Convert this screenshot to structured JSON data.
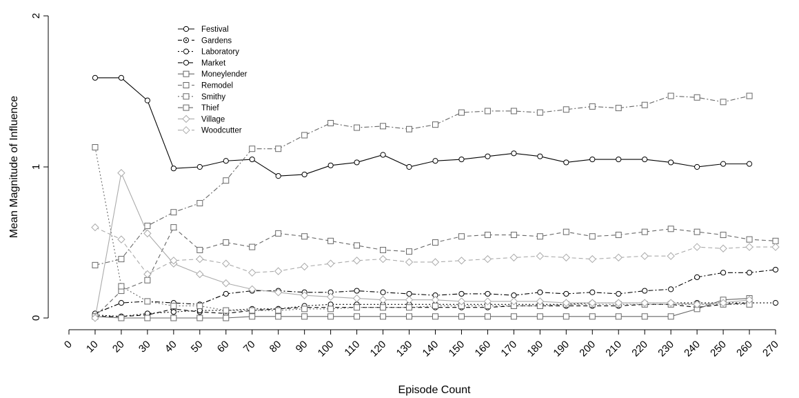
{
  "chart_data": {
    "type": "line",
    "title": "",
    "xlabel": "Episode Count",
    "ylabel": "Mean Magnitude of Influence",
    "xlim": [
      0,
      270
    ],
    "ylim": [
      0,
      2
    ],
    "x_ticks": [
      0,
      10,
      20,
      30,
      40,
      50,
      60,
      70,
      80,
      90,
      100,
      110,
      120,
      130,
      140,
      150,
      160,
      170,
      180,
      190,
      200,
      210,
      220,
      230,
      240,
      250,
      260,
      270
    ],
    "x_tick_labels": [
      "0",
      "10",
      "20",
      "30",
      "40",
      "50",
      "60",
      "70",
      "80",
      "90",
      "100",
      "110",
      "120",
      "130",
      "140",
      "150",
      "160",
      "170",
      "180",
      "190",
      "200",
      "210",
      "220",
      "230",
      "240",
      "250",
      "260",
      "270"
    ],
    "y_ticks": [
      0,
      1,
      2
    ],
    "y_tick_labels": [
      "0",
      "1",
      "2"
    ],
    "grid": false,
    "legend_position": "top-left",
    "series": [
      {
        "name": "Festival",
        "color": "#000000",
        "dash": "solid",
        "marker": "circle",
        "x": [
          10,
          20,
          30,
          40,
          50,
          60,
          70,
          80,
          90,
          100,
          110,
          120,
          130,
          140,
          150,
          160,
          170,
          180,
          190,
          200,
          210,
          220,
          230,
          240,
          250,
          260
        ],
        "values": [
          1.59,
          1.59,
          1.44,
          0.99,
          1.0,
          1.04,
          1.05,
          0.94,
          0.95,
          1.01,
          1.03,
          1.08,
          1.0,
          1.04,
          1.05,
          1.07,
          1.09,
          1.07,
          1.03,
          1.05,
          1.05,
          1.05,
          1.03,
          1.0,
          1.02,
          1.02
        ]
      },
      {
        "name": "Gardens",
        "color": "#000000",
        "dash": "dashed",
        "marker": "circle-dot",
        "x": [
          10,
          20,
          30,
          40,
          50,
          60,
          70,
          80,
          90,
          100,
          110,
          120,
          130,
          140,
          150,
          160,
          170,
          180,
          190,
          200,
          210,
          220,
          230,
          240,
          250,
          260
        ],
        "values": [
          0.01,
          0.01,
          0.02,
          0.06,
          0.04,
          0.03,
          0.05,
          0.06,
          0.07,
          0.07,
          0.07,
          0.07,
          0.07,
          0.07,
          0.07,
          0.07,
          0.08,
          0.08,
          0.08,
          0.08,
          0.08,
          0.09,
          0.09,
          0.07,
          0.09,
          0.1
        ]
      },
      {
        "name": "Laboratory",
        "color": "#000000",
        "dash": "dotted",
        "marker": "circle",
        "x": [
          10,
          20,
          30,
          40,
          50,
          60,
          70,
          80,
          90,
          100,
          110,
          120,
          130,
          140,
          150,
          160,
          170,
          180,
          190,
          200,
          210,
          220,
          230,
          240,
          250,
          260,
          270
        ],
        "values": [
          0.02,
          0.01,
          0.03,
          0.04,
          0.05,
          0.05,
          0.06,
          0.06,
          0.08,
          0.09,
          0.09,
          0.09,
          0.09,
          0.09,
          0.09,
          0.09,
          0.09,
          0.09,
          0.09,
          0.1,
          0.1,
          0.1,
          0.1,
          0.1,
          0.1,
          0.1,
          0.1
        ]
      },
      {
        "name": "Market",
        "color": "#000000",
        "dash": "dashdot",
        "marker": "circle",
        "x": [
          10,
          20,
          30,
          40,
          50,
          60,
          70,
          80,
          90,
          100,
          110,
          120,
          130,
          140,
          150,
          160,
          170,
          180,
          190,
          200,
          210,
          220,
          230,
          240,
          250,
          260,
          270
        ],
        "values": [
          0.03,
          0.1,
          0.11,
          0.1,
          0.09,
          0.16,
          0.18,
          0.18,
          0.17,
          0.17,
          0.18,
          0.17,
          0.16,
          0.15,
          0.16,
          0.16,
          0.15,
          0.17,
          0.16,
          0.17,
          0.16,
          0.18,
          0.19,
          0.27,
          0.3,
          0.3,
          0.32
        ]
      },
      {
        "name": "Moneylender",
        "color": "#666666",
        "dash": "solid",
        "marker": "square",
        "x": [
          10,
          20,
          30,
          40,
          50,
          60,
          70,
          80,
          90,
          100,
          110,
          120,
          130,
          140,
          150,
          160,
          170,
          180,
          190,
          200,
          210,
          220,
          230,
          240,
          250,
          260
        ],
        "values": [
          0.01,
          0.0,
          0.0,
          0.0,
          0.0,
          0.0,
          0.01,
          0.01,
          0.01,
          0.01,
          0.01,
          0.01,
          0.01,
          0.01,
          0.01,
          0.01,
          0.01,
          0.01,
          0.01,
          0.01,
          0.01,
          0.01,
          0.01,
          0.06,
          0.12,
          0.13
        ]
      },
      {
        "name": "Remodel",
        "color": "#666666",
        "dash": "dashed",
        "marker": "square",
        "x": [
          10,
          20,
          30,
          40,
          50,
          60,
          70,
          80,
          90,
          100,
          110,
          120,
          130,
          140,
          150,
          160,
          170,
          180,
          190,
          200,
          210,
          220,
          230,
          240,
          250,
          260,
          270
        ],
        "values": [
          0.01,
          0.18,
          0.25,
          0.6,
          0.45,
          0.5,
          0.47,
          0.56,
          0.54,
          0.51,
          0.48,
          0.45,
          0.44,
          0.5,
          0.54,
          0.55,
          0.55,
          0.54,
          0.57,
          0.54,
          0.55,
          0.57,
          0.59,
          0.57,
          0.55,
          0.52,
          0.51
        ]
      },
      {
        "name": "Smithy",
        "color": "#666666",
        "dash": "dotted",
        "marker": "square",
        "x": [
          10,
          20,
          30,
          40,
          50,
          60,
          70,
          80,
          90,
          100,
          110,
          120,
          130,
          140,
          150,
          160,
          170,
          180,
          190,
          200,
          210,
          220,
          230,
          240,
          250,
          260
        ],
        "values": [
          1.13,
          0.21,
          0.11,
          0.08,
          0.08,
          0.05,
          0.05,
          0.05,
          0.06,
          0.06,
          0.07,
          0.07,
          0.07,
          0.08,
          0.08,
          0.08,
          0.08,
          0.08,
          0.09,
          0.09,
          0.09,
          0.09,
          0.09,
          0.09,
          0.09,
          0.09
        ]
      },
      {
        "name": "Thief",
        "color": "#666666",
        "dash": "dashdot",
        "marker": "square",
        "x": [
          10,
          20,
          30,
          40,
          50,
          60,
          70,
          80,
          90,
          100,
          110,
          120,
          130,
          140,
          150,
          160,
          170,
          180,
          190,
          200,
          210,
          220,
          230,
          240,
          250,
          260
        ],
        "values": [
          0.35,
          0.39,
          0.61,
          0.7,
          0.76,
          0.91,
          1.12,
          1.12,
          1.21,
          1.29,
          1.26,
          1.27,
          1.25,
          1.28,
          1.36,
          1.37,
          1.37,
          1.36,
          1.38,
          1.4,
          1.39,
          1.41,
          1.47,
          1.46,
          1.43,
          1.47
        ]
      },
      {
        "name": "Village",
        "color": "#aaaaaa",
        "dash": "solid",
        "marker": "diamond",
        "x": [
          10,
          20,
          30,
          40,
          50,
          60,
          70,
          80,
          90,
          100,
          110,
          120,
          130,
          140,
          150,
          160,
          170,
          180,
          190,
          200,
          210,
          220,
          230,
          240,
          250,
          260
        ],
        "values": [
          0.0,
          0.96,
          0.56,
          0.36,
          0.29,
          0.23,
          0.19,
          0.17,
          0.15,
          0.14,
          0.13,
          0.12,
          0.12,
          0.12,
          0.11,
          0.11,
          0.11,
          0.11,
          0.1,
          0.1,
          0.1,
          0.1,
          0.1,
          0.09,
          0.1,
          0.12
        ]
      },
      {
        "name": "Woodcutter",
        "color": "#aaaaaa",
        "dash": "dashed",
        "marker": "diamond",
        "x": [
          10,
          20,
          30,
          40,
          50,
          60,
          70,
          80,
          90,
          100,
          110,
          120,
          130,
          140,
          150,
          160,
          170,
          180,
          190,
          200,
          210,
          220,
          230,
          240,
          250,
          260,
          270
        ],
        "values": [
          0.6,
          0.52,
          0.29,
          0.38,
          0.39,
          0.36,
          0.3,
          0.31,
          0.34,
          0.36,
          0.38,
          0.39,
          0.37,
          0.37,
          0.38,
          0.39,
          0.4,
          0.41,
          0.4,
          0.39,
          0.4,
          0.41,
          0.41,
          0.47,
          0.46,
          0.47,
          0.47
        ]
      }
    ]
  }
}
